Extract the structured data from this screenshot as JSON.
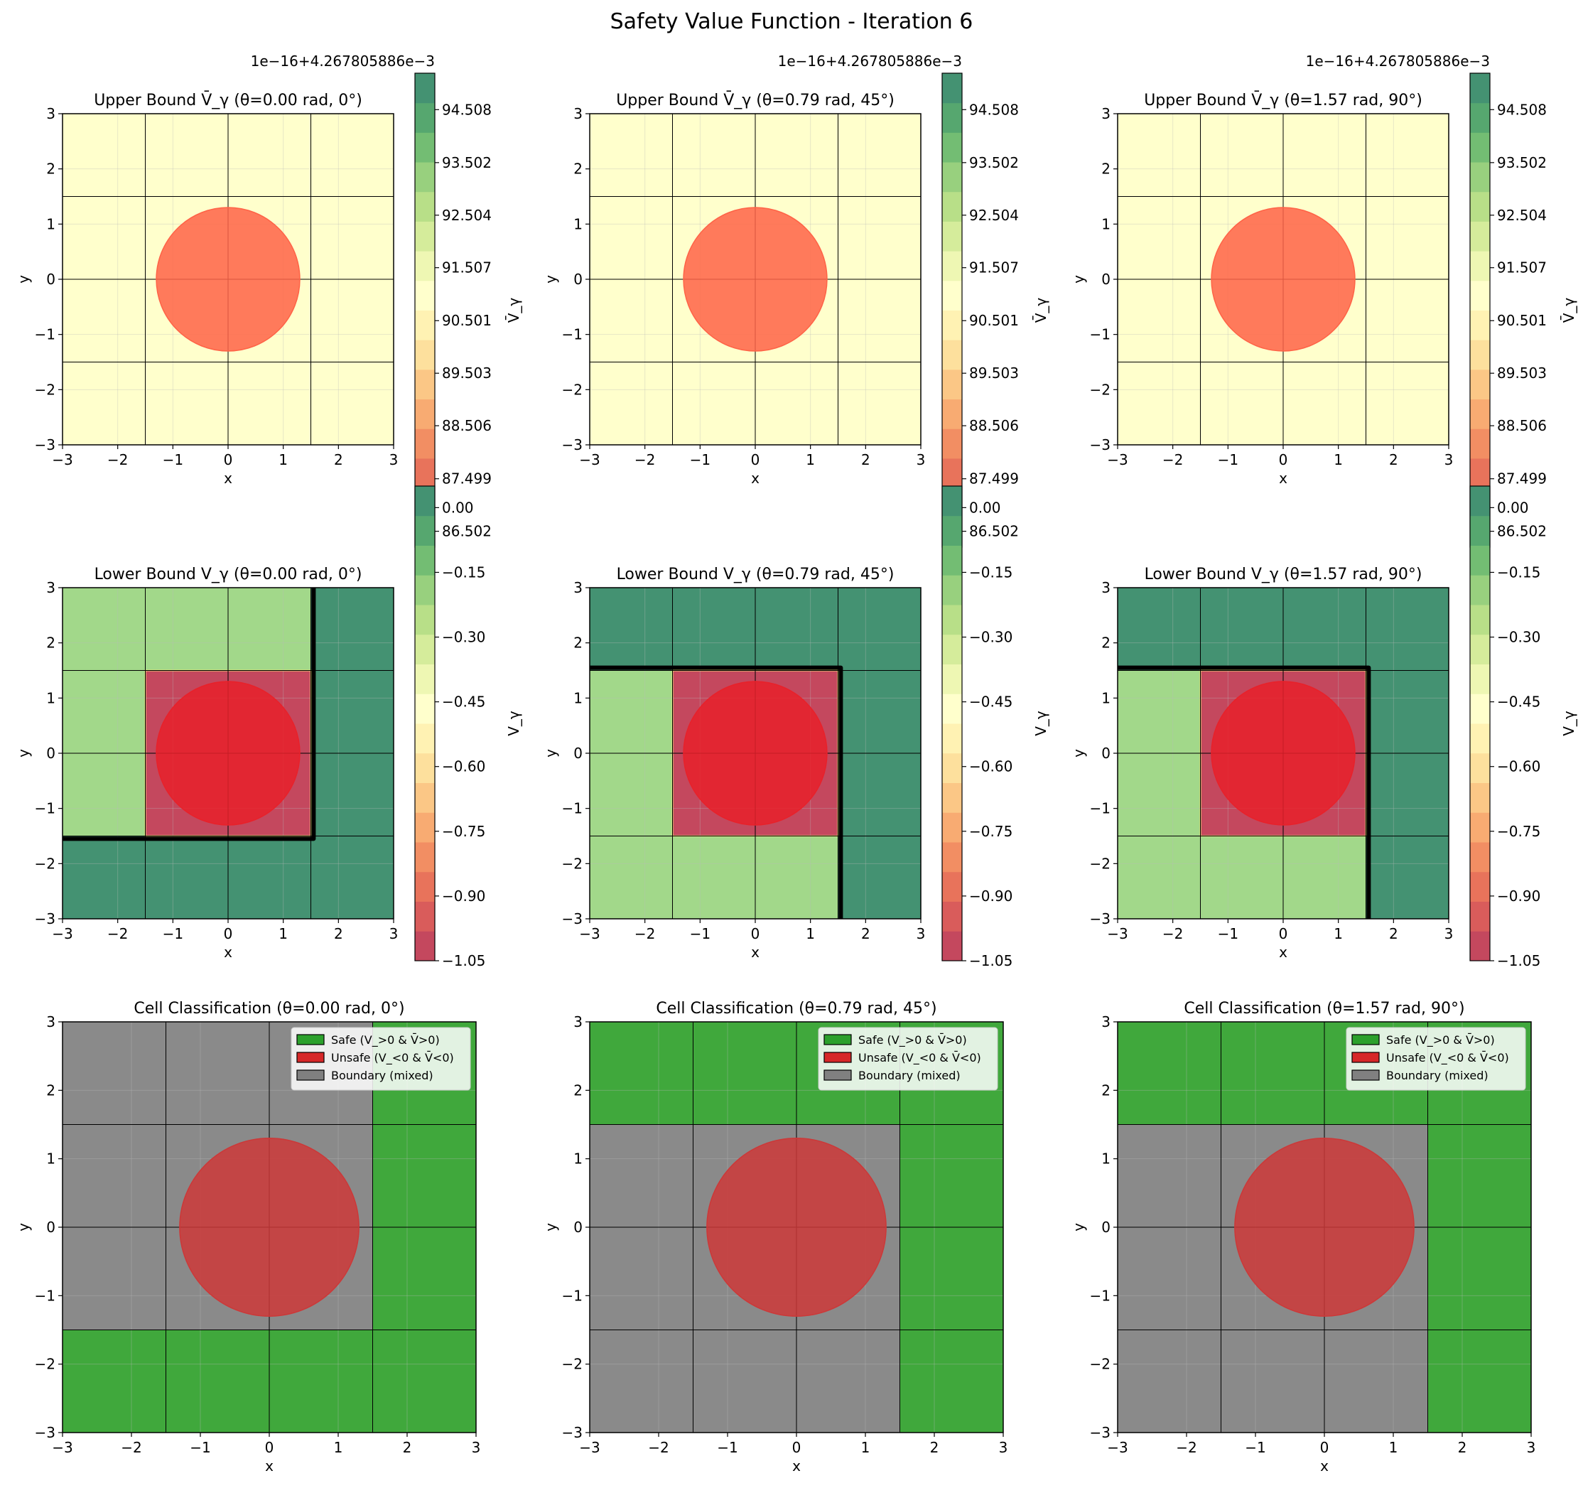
{
  "figure": {
    "title": "Safety Value Function - Iteration 6"
  },
  "chart_data": [
    {
      "type": "heatmap",
      "row": 0,
      "col": 0,
      "title": "Upper Bound V̄_γ (θ=0.00 rad, 0°)",
      "xlabel": "x",
      "ylabel": "y",
      "xlim": [
        -3,
        3
      ],
      "ylim": [
        -3,
        3
      ],
      "xticks": [
        -3,
        -2,
        -1,
        0,
        1,
        2,
        3
      ],
      "yticks": [
        -3,
        -2,
        -1,
        0,
        1,
        2,
        3
      ],
      "cells": [
        [
          "#ffffcc",
          "#ffffcc",
          "#ffffcc",
          "#ffffcc"
        ],
        [
          "#ffffcc",
          "#ffffcc",
          "#ffffcc",
          "#ffffcc"
        ],
        [
          "#ffffcc",
          "#ffffcc",
          "#ffffcc",
          "#ffffcc"
        ],
        [
          "#ffffcc",
          "#ffffcc",
          "#ffffcc",
          "#ffffcc"
        ]
      ],
      "obstacle": {
        "cx": 0,
        "cy": 0,
        "r": 1.3,
        "color": "#ff6347"
      },
      "colorbar": {
        "label": "V̄_γ",
        "offset_text": "1e−16+4.267805886e−3",
        "ticks": [
          "86.502",
          "87.499",
          "88.506",
          "89.503",
          "90.501",
          "91.507",
          "92.504",
          "93.502",
          "94.508"
        ],
        "range": [
          86.2,
          95.2
        ]
      },
      "boundary": []
    },
    {
      "type": "heatmap",
      "row": 0,
      "col": 1,
      "title": "Upper Bound V̄_γ (θ=0.79 rad, 45°)",
      "xlabel": "x",
      "ylabel": "y",
      "xlim": [
        -3,
        3
      ],
      "ylim": [
        -3,
        3
      ],
      "xticks": [
        -3,
        -2,
        -1,
        0,
        1,
        2,
        3
      ],
      "yticks": [
        -3,
        -2,
        -1,
        0,
        1,
        2,
        3
      ],
      "cells": [
        [
          "#ffffcc",
          "#ffffcc",
          "#ffffcc",
          "#ffffcc"
        ],
        [
          "#ffffcc",
          "#ffffcc",
          "#ffffcc",
          "#ffffcc"
        ],
        [
          "#ffffcc",
          "#ffffcc",
          "#ffffcc",
          "#ffffcc"
        ],
        [
          "#ffffcc",
          "#ffffcc",
          "#ffffcc",
          "#ffffcc"
        ]
      ],
      "obstacle": {
        "cx": 0,
        "cy": 0,
        "r": 1.3,
        "color": "#ff6347"
      },
      "colorbar": {
        "label": "V̄_γ",
        "offset_text": "1e−16+4.267805886e−3",
        "ticks": [
          "86.502",
          "87.499",
          "88.506",
          "89.503",
          "90.501",
          "91.507",
          "92.504",
          "93.502",
          "94.508"
        ],
        "range": [
          86.2,
          95.2
        ]
      },
      "boundary": []
    },
    {
      "type": "heatmap",
      "row": 0,
      "col": 2,
      "title": "Upper Bound V̄_γ (θ=1.57 rad, 90°)",
      "xlabel": "x",
      "ylabel": "y",
      "xlim": [
        -3,
        3
      ],
      "ylim": [
        -3,
        3
      ],
      "xticks": [
        -3,
        -2,
        -1,
        0,
        1,
        2,
        3
      ],
      "yticks": [
        -3,
        -2,
        -1,
        0,
        1,
        2,
        3
      ],
      "cells": [
        [
          "#ffffcc",
          "#ffffcc",
          "#ffffcc",
          "#ffffcc"
        ],
        [
          "#ffffcc",
          "#ffffcc",
          "#ffffcc",
          "#ffffcc"
        ],
        [
          "#ffffcc",
          "#ffffcc",
          "#ffffcc",
          "#ffffcc"
        ],
        [
          "#ffffcc",
          "#ffffcc",
          "#ffffcc",
          "#ffffcc"
        ]
      ],
      "obstacle": {
        "cx": 0,
        "cy": 0,
        "r": 1.3,
        "color": "#ff6347"
      },
      "colorbar": {
        "label": "V̄_γ",
        "offset_text": "1e−16+4.267805886e−3",
        "ticks": [
          "86.502",
          "87.499",
          "88.506",
          "89.503",
          "90.501",
          "91.507",
          "92.504",
          "93.502",
          "94.508"
        ],
        "range": [
          86.2,
          95.2
        ]
      },
      "boundary": []
    },
    {
      "type": "heatmap",
      "row": 1,
      "col": 0,
      "title": "Lower Bound V_γ (θ=0.00 rad, 0°)",
      "xlabel": "x",
      "ylabel": "y",
      "xlim": [
        -3,
        3
      ],
      "ylim": [
        -3,
        3
      ],
      "xticks": [
        -3,
        -2,
        -1,
        0,
        1,
        2,
        3
      ],
      "yticks": [
        -3,
        -2,
        -1,
        0,
        1,
        2,
        3
      ],
      "cells": [
        [
          "#a2d88a",
          "#a2d88a",
          "#a2d88a",
          "#449272"
        ],
        [
          "#a2d88a",
          "#c4485e",
          "#c4485e",
          "#449272"
        ],
        [
          "#a2d88a",
          "#c4485e",
          "#c4485e",
          "#449272"
        ],
        [
          "#449272",
          "#449272",
          "#449272",
          "#449272"
        ]
      ],
      "obstacle": {
        "cx": 0,
        "cy": 0,
        "r": 1.3,
        "color": "#e8212a"
      },
      "colorbar": {
        "label": "V_γ",
        "offset_text": "",
        "ticks": [
          "-1.05",
          "-0.90",
          "-0.75",
          "-0.60",
          "-0.45",
          "-0.30",
          "-0.15",
          "0.00"
        ],
        "range": [
          -1.05,
          0.05
        ]
      },
      "boundary": [
        [
          [
            -3,
            -1.55
          ],
          [
            1.55,
            -1.55
          ],
          [
            1.55,
            3
          ]
        ]
      ]
    },
    {
      "type": "heatmap",
      "row": 1,
      "col": 1,
      "title": "Lower Bound V_γ (θ=0.79 rad, 45°)",
      "xlabel": "x",
      "ylabel": "y",
      "xlim": [
        -3,
        3
      ],
      "ylim": [
        -3,
        3
      ],
      "xticks": [
        -3,
        -2,
        -1,
        0,
        1,
        2,
        3
      ],
      "yticks": [
        -3,
        -2,
        -1,
        0,
        1,
        2,
        3
      ],
      "cells": [
        [
          "#449272",
          "#449272",
          "#449272",
          "#449272"
        ],
        [
          "#a2d88a",
          "#c4485e",
          "#c4485e",
          "#449272"
        ],
        [
          "#a2d88a",
          "#c4485e",
          "#c4485e",
          "#449272"
        ],
        [
          "#a2d88a",
          "#a2d88a",
          "#a2d88a",
          "#449272"
        ]
      ],
      "obstacle": {
        "cx": 0,
        "cy": 0,
        "r": 1.3,
        "color": "#e8212a"
      },
      "colorbar": {
        "label": "V_γ",
        "offset_text": "",
        "ticks": [
          "-1.05",
          "-0.90",
          "-0.75",
          "-0.60",
          "-0.45",
          "-0.30",
          "-0.15",
          "0.00"
        ],
        "range": [
          -1.05,
          0.05
        ]
      },
      "boundary": [
        [
          [
            -3,
            1.55
          ],
          [
            1.55,
            1.55
          ],
          [
            1.55,
            -3
          ]
        ]
      ]
    },
    {
      "type": "heatmap",
      "row": 1,
      "col": 2,
      "title": "Lower Bound V_γ (θ=1.57 rad, 90°)",
      "xlabel": "x",
      "ylabel": "y",
      "xlim": [
        -3,
        3
      ],
      "ylim": [
        -3,
        3
      ],
      "xticks": [
        -3,
        -2,
        -1,
        0,
        1,
        2,
        3
      ],
      "yticks": [
        -3,
        -2,
        -1,
        0,
        1,
        2,
        3
      ],
      "cells": [
        [
          "#449272",
          "#449272",
          "#449272",
          "#449272"
        ],
        [
          "#a2d88a",
          "#c4485e",
          "#c4485e",
          "#449272"
        ],
        [
          "#a2d88a",
          "#c4485e",
          "#c4485e",
          "#449272"
        ],
        [
          "#a2d88a",
          "#a2d88a",
          "#a2d88a",
          "#449272"
        ]
      ],
      "obstacle": {
        "cx": 0,
        "cy": 0,
        "r": 1.3,
        "color": "#e8212a"
      },
      "colorbar": {
        "label": "V_γ",
        "offset_text": "",
        "ticks": [
          "-1.05",
          "-0.90",
          "-0.75",
          "-0.60",
          "-0.45",
          "-0.30",
          "-0.15",
          "0.00"
        ],
        "range": [
          -1.05,
          0.05
        ]
      },
      "boundary": [
        [
          [
            -3,
            1.55
          ],
          [
            1.55,
            1.55
          ],
          [
            1.55,
            -3
          ]
        ]
      ]
    },
    {
      "type": "heatmap",
      "row": 2,
      "col": 0,
      "title": "Cell Classification (θ=0.00 rad, 0°)",
      "xlabel": "x",
      "ylabel": "y",
      "xlim": [
        -3,
        3
      ],
      "ylim": [
        -3,
        3
      ],
      "xticks": [
        -3,
        -2,
        -1,
        0,
        1,
        2,
        3
      ],
      "yticks": [
        -3,
        -2,
        -1,
        0,
        1,
        2,
        3
      ],
      "cells": [
        [
          "#8a8a8a",
          "#8a8a8a",
          "#8a8a8a",
          "#40a83c"
        ],
        [
          "#8a8a8a",
          "#8a8a8a",
          "#8a8a8a",
          "#40a83c"
        ],
        [
          "#8a8a8a",
          "#8a8a8a",
          "#8a8a8a",
          "#40a83c"
        ],
        [
          "#40a83c",
          "#40a83c",
          "#40a83c",
          "#40a83c"
        ]
      ],
      "obstacle": {
        "cx": 0,
        "cy": 0,
        "r": 1.3,
        "color": "#cc3838"
      },
      "legend": [
        "Safe (V_>0 & V̄>0)",
        "Unsafe (V_<0 & V̄<0)",
        "Boundary (mixed)"
      ],
      "legend_colors": [
        "#2ca02c",
        "#d62728",
        "#808080"
      ],
      "boundary": []
    },
    {
      "type": "heatmap",
      "row": 2,
      "col": 1,
      "title": "Cell Classification (θ=0.79 rad, 45°)",
      "xlabel": "x",
      "ylabel": "y",
      "xlim": [
        -3,
        3
      ],
      "ylim": [
        -3,
        3
      ],
      "xticks": [
        -3,
        -2,
        -1,
        0,
        1,
        2,
        3
      ],
      "yticks": [
        -3,
        -2,
        -1,
        0,
        1,
        2,
        3
      ],
      "cells": [
        [
          "#40a83c",
          "#40a83c",
          "#40a83c",
          "#40a83c"
        ],
        [
          "#8a8a8a",
          "#8a8a8a",
          "#8a8a8a",
          "#40a83c"
        ],
        [
          "#8a8a8a",
          "#8a8a8a",
          "#8a8a8a",
          "#40a83c"
        ],
        [
          "#8a8a8a",
          "#8a8a8a",
          "#8a8a8a",
          "#40a83c"
        ]
      ],
      "obstacle": {
        "cx": 0,
        "cy": 0,
        "r": 1.3,
        "color": "#cc3838"
      },
      "legend": [
        "Safe (V_>0 & V̄>0)",
        "Unsafe (V_<0 & V̄<0)",
        "Boundary (mixed)"
      ],
      "legend_colors": [
        "#2ca02c",
        "#d62728",
        "#808080"
      ],
      "boundary": []
    },
    {
      "type": "heatmap",
      "row": 2,
      "col": 2,
      "title": "Cell Classification (θ=1.57 rad, 90°)",
      "xlabel": "x",
      "ylabel": "y",
      "xlim": [
        -3,
        3
      ],
      "ylim": [
        -3,
        3
      ],
      "xticks": [
        -3,
        -2,
        -1,
        0,
        1,
        2,
        3
      ],
      "yticks": [
        -3,
        -2,
        -1,
        0,
        1,
        2,
        3
      ],
      "cells": [
        [
          "#40a83c",
          "#40a83c",
          "#40a83c",
          "#40a83c"
        ],
        [
          "#8a8a8a",
          "#8a8a8a",
          "#8a8a8a",
          "#40a83c"
        ],
        [
          "#8a8a8a",
          "#8a8a8a",
          "#8a8a8a",
          "#40a83c"
        ],
        [
          "#8a8a8a",
          "#8a8a8a",
          "#8a8a8a",
          "#40a83c"
        ]
      ],
      "obstacle": {
        "cx": 0,
        "cy": 0,
        "r": 1.3,
        "color": "#cc3838"
      },
      "legend": [
        "Safe (V_>0 & V̄>0)",
        "Unsafe (V_<0 & V̄<0)",
        "Boundary (mixed)"
      ],
      "legend_colors": [
        "#2ca02c",
        "#d62728",
        "#808080"
      ],
      "boundary": []
    }
  ],
  "colormap": [
    "#c4485e",
    "#d95c5b",
    "#e8735b",
    "#f28e63",
    "#f8ab72",
    "#fbc786",
    "#fde09d",
    "#fff2b3",
    "#ffffcc",
    "#eef7b3",
    "#d5ec9b",
    "#b8df88",
    "#98d07e",
    "#73bd73",
    "#56a76f",
    "#449272"
  ]
}
